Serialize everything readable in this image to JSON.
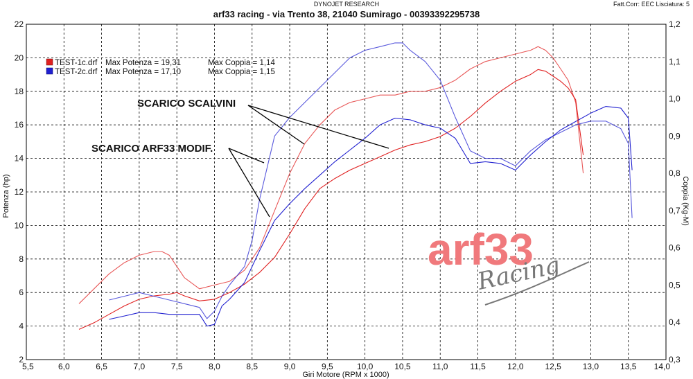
{
  "header": {
    "center": "DYNOJET RESEARCH",
    "right": "Fatt.Corr: EEC  Lisciatura: 5"
  },
  "chart_data": {
    "type": "line",
    "title": "arf33 racing - via Trento 38, 21040 Sumirago - 00393392295738",
    "xlabel": "Giri Motore (RPM x 1000)",
    "ylabel": "Potenza (hp)",
    "y2label": "Coppia (Kg-M)",
    "xlim": [
      5.5,
      14.0
    ],
    "ylim": [
      2,
      22
    ],
    "y2lim": [
      0.3,
      1.2
    ],
    "x_ticks": [
      "5,5",
      "6,0",
      "6,5",
      "7,0",
      "7,5",
      "8,0",
      "8,5",
      "9,0",
      "9,5",
      "10,0",
      "10,5",
      "11,0",
      "11,5",
      "12,0",
      "12,5",
      "13,0",
      "13,5",
      "14,0"
    ],
    "y_ticks": [
      "2",
      "4",
      "6",
      "8",
      "10",
      "12",
      "14",
      "16",
      "18",
      "20",
      "22"
    ],
    "y2_ticks": [
      "0,3",
      "0,4",
      "0,5",
      "0,6",
      "0,7",
      "0,8",
      "0,9",
      "1,0",
      "1,1",
      "1,2"
    ],
    "grid": true,
    "legend": [
      {
        "color": "#e02020",
        "file": "TEST-1c.drf",
        "potenza_label": "Max Potenza = 19,31",
        "coppia_label": "Max Coppia = 1,14"
      },
      {
        "color": "#2020d0",
        "file": "TEST-2c.drf",
        "potenza_label": "Max Potenza = 17,10",
        "coppia_label": "Max Coppia = 1,15"
      }
    ],
    "annotations": [
      "SCARICO SCALVINI",
      "SCARICO ARF33 MODIF."
    ],
    "series": [
      {
        "color": "#e02020",
        "axis": "left",
        "x": [
          6.2,
          6.4,
          6.6,
          6.8,
          7.0,
          7.2,
          7.4,
          7.5,
          7.6,
          7.8,
          8.0,
          8.2,
          8.4,
          8.6,
          8.8,
          9.0,
          9.2,
          9.4,
          9.6,
          9.8,
          10.0,
          10.2,
          10.4,
          10.6,
          10.8,
          11.0,
          11.2,
          11.4,
          11.6,
          11.8,
          12.0,
          12.2,
          12.3,
          12.4,
          12.5,
          12.6,
          12.7,
          12.8,
          12.9
        ],
        "y": [
          3.8,
          4.2,
          4.7,
          5.2,
          5.6,
          5.8,
          5.9,
          6.0,
          5.8,
          5.5,
          5.6,
          6.0,
          6.5,
          7.2,
          8.1,
          9.5,
          11.0,
          12.2,
          12.8,
          13.3,
          13.7,
          14.1,
          14.5,
          14.8,
          15.0,
          15.3,
          15.8,
          16.5,
          17.3,
          18.0,
          18.6,
          19.0,
          19.3,
          19.2,
          18.9,
          18.6,
          18.2,
          17.5,
          14.2
        ]
      },
      {
        "color": "#2020d0",
        "axis": "left",
        "x": [
          6.6,
          6.8,
          7.0,
          7.2,
          7.4,
          7.6,
          7.8,
          7.9,
          8.0,
          8.1,
          8.2,
          8.4,
          8.6,
          8.8,
          9.0,
          9.2,
          9.4,
          9.6,
          9.8,
          10.0,
          10.2,
          10.4,
          10.6,
          10.8,
          11.0,
          11.2,
          11.4,
          11.6,
          11.8,
          12.0,
          12.2,
          12.4,
          12.6,
          12.8,
          13.0,
          13.2,
          13.4,
          13.5,
          13.55
        ],
        "y": [
          4.4,
          4.6,
          4.8,
          4.8,
          4.7,
          4.7,
          4.7,
          4.0,
          4.1,
          5.2,
          5.6,
          6.6,
          8.5,
          10.3,
          11.3,
          12.2,
          13.0,
          13.8,
          14.5,
          15.2,
          16.0,
          16.4,
          16.3,
          16.0,
          15.8,
          15.2,
          13.7,
          13.8,
          13.7,
          13.3,
          14.2,
          15.0,
          15.7,
          16.2,
          16.7,
          17.1,
          17.0,
          16.4,
          13.3
        ]
      },
      {
        "color": "#e02020",
        "axis": "right",
        "x": [
          6.2,
          6.4,
          6.6,
          6.8,
          7.0,
          7.2,
          7.3,
          7.4,
          7.5,
          7.6,
          7.8,
          8.0,
          8.2,
          8.4,
          8.6,
          8.8,
          9.0,
          9.2,
          9.4,
          9.6,
          9.8,
          10.0,
          10.2,
          10.4,
          10.6,
          10.8,
          11.0,
          11.2,
          11.4,
          11.6,
          11.8,
          12.0,
          12.2,
          12.3,
          12.4,
          12.5,
          12.6,
          12.7,
          12.8,
          12.9
        ],
        "y": [
          0.45,
          0.49,
          0.53,
          0.56,
          0.58,
          0.59,
          0.59,
          0.58,
          0.55,
          0.52,
          0.49,
          0.5,
          0.51,
          0.54,
          0.6,
          0.7,
          0.8,
          0.88,
          0.93,
          0.97,
          0.99,
          1.0,
          1.01,
          1.01,
          1.02,
          1.02,
          1.03,
          1.05,
          1.08,
          1.1,
          1.11,
          1.12,
          1.13,
          1.14,
          1.13,
          1.11,
          1.08,
          1.05,
          0.99,
          0.8
        ]
      },
      {
        "color": "#2020d0",
        "axis": "right",
        "x": [
          6.6,
          6.8,
          7.0,
          7.2,
          7.4,
          7.6,
          7.8,
          7.9,
          8.0,
          8.1,
          8.2,
          8.4,
          8.5,
          8.6,
          8.8,
          9.0,
          9.2,
          9.4,
          9.6,
          9.8,
          10.0,
          10.2,
          10.4,
          10.5,
          10.6,
          10.8,
          11.0,
          11.2,
          11.4,
          11.6,
          11.8,
          12.0,
          12.2,
          12.4,
          12.6,
          12.8,
          13.0,
          13.2,
          13.4,
          13.5,
          13.55
        ],
        "y": [
          0.46,
          0.47,
          0.48,
          0.47,
          0.46,
          0.45,
          0.44,
          0.41,
          0.43,
          0.47,
          0.5,
          0.55,
          0.62,
          0.73,
          0.9,
          0.95,
          0.99,
          1.03,
          1.07,
          1.11,
          1.13,
          1.14,
          1.15,
          1.15,
          1.13,
          1.1,
          1.05,
          0.95,
          0.86,
          0.84,
          0.84,
          0.82,
          0.86,
          0.89,
          0.91,
          0.93,
          0.94,
          0.94,
          0.92,
          0.88,
          0.68
        ]
      }
    ]
  },
  "watermark": {
    "main": "arf33",
    "script": "Racing"
  }
}
